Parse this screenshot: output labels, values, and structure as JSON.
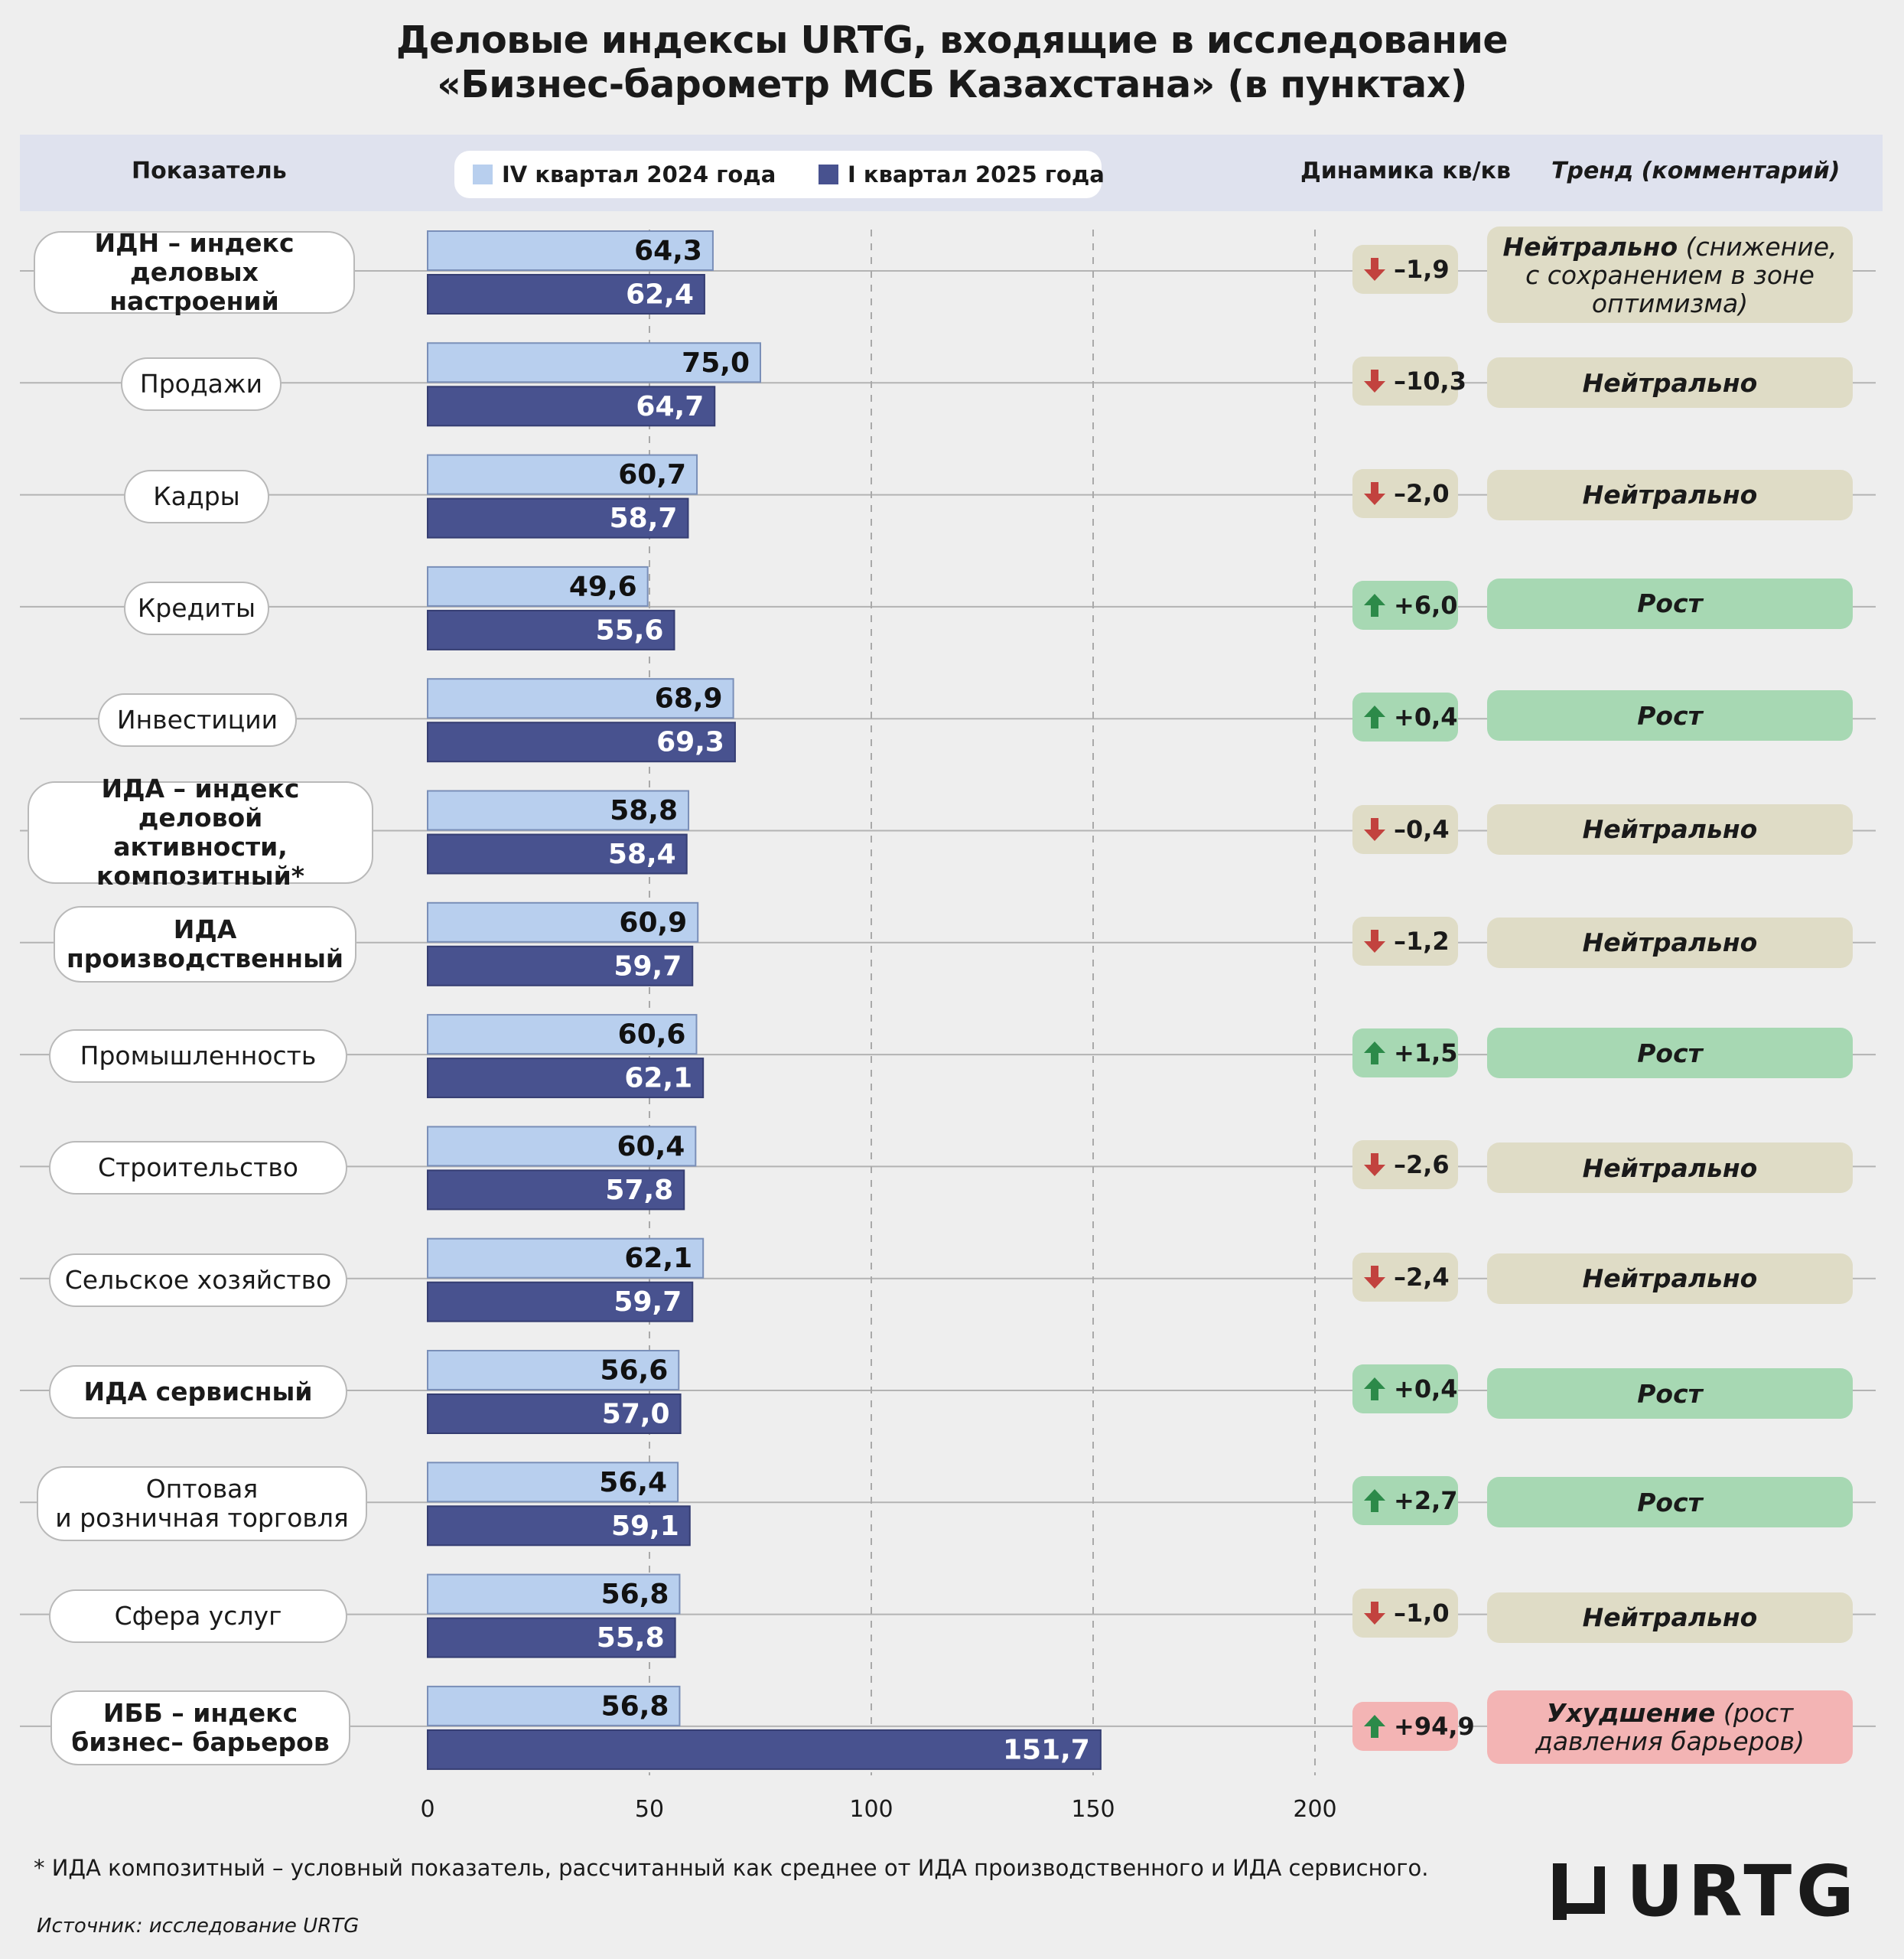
{
  "title_line1": "Деловые индексы URTG, входящие в исследование",
  "title_line2": "«Бизнес-барометр МСБ Казахстана» (в пунктах)",
  "header": {
    "indicator": "Показатель",
    "dynamics": "Динамика кв/кв",
    "trend": "Тренд (комментарий)"
  },
  "colors": {
    "q4_2024": "#b8cfee",
    "q1_2025": "#48528f",
    "neutral_bg": "#dfdcc6",
    "growth_bg": "#a7d8b3",
    "worse_bg": "#f3b4b4",
    "arrow_down": "#c2423e",
    "arrow_up": "#2c8a49"
  },
  "icons": {
    "down": "arrow-down-icon",
    "up": "arrow-up-icon"
  },
  "chart_data": {
    "type": "bar",
    "orientation": "horizontal",
    "title": "Деловые индексы URTG, входящие в исследование «Бизнес-барометр МСБ Казахстана» (в пунктах)",
    "xlim": [
      0,
      200
    ],
    "xticks": [
      0,
      50,
      100,
      150,
      200
    ],
    "xtick_labels": [
      "0",
      "50",
      "100",
      "150",
      "200"
    ],
    "grid": "vertical dashed",
    "legend_position": "top",
    "categories": [
      "ИДН – индекс деловых настроений",
      "Продажи",
      "Кадры",
      "Кредиты",
      "Инвестиции",
      "ИДА – индекс деловой активности, композитный*",
      "ИДА производственный",
      "Промышленность",
      "Строительство",
      "Сельское хозяйство",
      "ИДА сервисный",
      "Оптовая и розничная торговля",
      "Сфера услуг",
      "ИББ – индекс бизнес– барьеров"
    ],
    "series": [
      {
        "name": "IV квартал 2024 года",
        "values": [
          64.3,
          75.0,
          60.7,
          49.6,
          68.9,
          58.8,
          60.9,
          60.6,
          60.4,
          62.1,
          56.6,
          56.4,
          56.8,
          56.8
        ],
        "labels": [
          "64,3",
          "75,0",
          "60,7",
          "49,6",
          "68,9",
          "58,8",
          "60,9",
          "60,6",
          "60,4",
          "62,1",
          "56,6",
          "56,4",
          "56,8",
          "56,8"
        ]
      },
      {
        "name": "I квартал 2025 года",
        "values": [
          62.4,
          64.7,
          58.7,
          55.6,
          69.3,
          58.4,
          59.7,
          62.1,
          57.8,
          59.7,
          57.0,
          59.1,
          55.8,
          151.7
        ],
        "labels": [
          "62,4",
          "64,7",
          "58,7",
          "55,6",
          "69,3",
          "58,4",
          "59,7",
          "62,1",
          "57,8",
          "59,7",
          "57,0",
          "59,1",
          "55,8",
          "151,7"
        ]
      }
    ]
  },
  "rows": [
    {
      "label_lines": [
        "ИДН – индекс",
        "деловых настроений"
      ],
      "bold": true,
      "dynamics": "–1,9",
      "dir": "down",
      "dyn_kind": "neutral",
      "trend_bold": "Нейтрально",
      "trend_rest": " (снижение, с сохранением в зоне оптимизма)",
      "trend_kind": "neutral"
    },
    {
      "label_lines": [
        "Продажи"
      ],
      "bold": false,
      "dynamics": "–10,3",
      "dir": "down",
      "dyn_kind": "neutral",
      "trend_bold": "Нейтрально",
      "trend_rest": "",
      "trend_kind": "neutral"
    },
    {
      "label_lines": [
        "Кадры"
      ],
      "bold": false,
      "dynamics": "–2,0",
      "dir": "down",
      "dyn_kind": "neutral",
      "trend_bold": "Нейтрально",
      "trend_rest": "",
      "trend_kind": "neutral"
    },
    {
      "label_lines": [
        "Кредиты"
      ],
      "bold": false,
      "dynamics": "+6,0",
      "dir": "up",
      "dyn_kind": "growth",
      "trend_bold": "Рост",
      "trend_rest": "",
      "trend_kind": "growth"
    },
    {
      "label_lines": [
        "Инвестиции"
      ],
      "bold": false,
      "dynamics": "+0,4",
      "dir": "up",
      "dyn_kind": "growth",
      "trend_bold": "Рост",
      "trend_rest": "",
      "trend_kind": "growth"
    },
    {
      "label_lines": [
        "ИДА – индекс деловой",
        "активности,",
        "композитный*"
      ],
      "bold": true,
      "dynamics": "–0,4",
      "dir": "down",
      "dyn_kind": "neutral",
      "trend_bold": "Нейтрально",
      "trend_rest": "",
      "trend_kind": "neutral"
    },
    {
      "label_lines": [
        "ИДА",
        "производственный"
      ],
      "bold": true,
      "dynamics": "–1,2",
      "dir": "down",
      "dyn_kind": "neutral",
      "trend_bold": "Нейтрально",
      "trend_rest": "",
      "trend_kind": "neutral"
    },
    {
      "label_lines": [
        "Промышленность"
      ],
      "bold": false,
      "dynamics": "+1,5",
      "dir": "up",
      "dyn_kind": "growth",
      "trend_bold": "Рост",
      "trend_rest": "",
      "trend_kind": "growth"
    },
    {
      "label_lines": [
        "Строительство"
      ],
      "bold": false,
      "dynamics": "–2,6",
      "dir": "down",
      "dyn_kind": "neutral",
      "trend_bold": "Нейтрально",
      "trend_rest": "",
      "trend_kind": "neutral"
    },
    {
      "label_lines": [
        "Сельское хозяйство"
      ],
      "bold": false,
      "dynamics": "–2,4",
      "dir": "down",
      "dyn_kind": "neutral",
      "trend_bold": "Нейтрально",
      "trend_rest": "",
      "trend_kind": "neutral"
    },
    {
      "label_lines": [
        "ИДА сервисный"
      ],
      "bold": true,
      "dynamics": "+0,4",
      "dir": "up",
      "dyn_kind": "growth",
      "trend_bold": "Рост",
      "trend_rest": "",
      "trend_kind": "growth"
    },
    {
      "label_lines": [
        "Оптовая",
        "и розничная торговля"
      ],
      "bold": false,
      "dynamics": "+2,7",
      "dir": "up",
      "dyn_kind": "growth",
      "trend_bold": "Рост",
      "trend_rest": "",
      "trend_kind": "growth"
    },
    {
      "label_lines": [
        "Сфера услуг"
      ],
      "bold": false,
      "dynamics": "–1,0",
      "dir": "down",
      "dyn_kind": "neutral",
      "trend_bold": "Нейтрально",
      "trend_rest": "",
      "trend_kind": "neutral"
    },
    {
      "label_lines": [
        "ИББ – индекс",
        "бизнес– барьеров"
      ],
      "bold": true,
      "dynamics": "+94,9",
      "dir": "up",
      "dyn_kind": "worse",
      "trend_bold": "Ухудшение",
      "trend_rest": " (рост давления барьеров)",
      "trend_kind": "worse"
    }
  ],
  "footnote": "* ИДА композитный – условный показатель, рассчитанный как среднее от ИДА производственного и ИДА сервисного.",
  "source": "Источник: исследование URTG",
  "logo_text": "URTG"
}
